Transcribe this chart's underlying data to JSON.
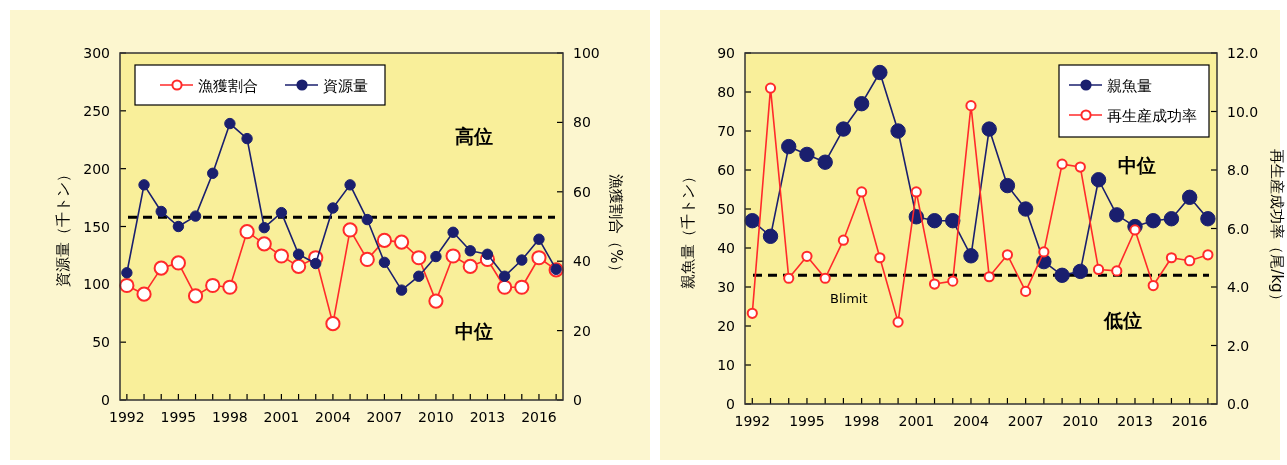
{
  "chart_data": [
    {
      "type": "line",
      "xlabel": null,
      "ylabel": "資源量（千トン）",
      "y2label": "漁獲割合（%）",
      "x": [
        1992,
        1993,
        1994,
        1995,
        1996,
        1997,
        1998,
        1999,
        2000,
        2001,
        2002,
        2003,
        2004,
        2005,
        2006,
        2007,
        2008,
        2009,
        2010,
        2011,
        2012,
        2013,
        2014,
        2015,
        2016,
        2017
      ],
      "series": [
        {
          "name": "漁獲割合",
          "color": "#ff2a2a",
          "axis": "y2",
          "values": [
            33,
            30.5,
            38,
            39.5,
            30,
            33,
            32.5,
            48.5,
            45,
            41.5,
            38.5,
            41,
            22,
            49,
            40.5,
            46,
            45.5,
            41,
            28.5,
            41.5,
            38.5,
            40.5,
            32.5,
            32.5,
            41,
            37.5
          ]
        },
        {
          "name": "資源量",
          "color": "#1a1f6e",
          "values": [
            110,
            186,
            163,
            150,
            159,
            196,
            239,
            226,
            149,
            162,
            126,
            118,
            166,
            186,
            156,
            119,
            95,
            107,
            124,
            145,
            129,
            126,
            107,
            121,
            139,
            113
          ]
        }
      ],
      "xlim": [
        1991.6,
        2017.4
      ],
      "xticks": [
        1992,
        {
          "value": 1993,
          "label": null
        },
        {
          "value": 1994,
          "label": null
        },
        1995,
        {
          "value": 1996,
          "label": null
        },
        {
          "value": 1997,
          "label": null
        },
        1998,
        {
          "value": 1999,
          "label": null
        },
        {
          "value": 2000,
          "label": null
        },
        2001,
        {
          "value": 2002,
          "label": null
        },
        {
          "value": 2003,
          "label": null
        },
        2004,
        {
          "value": 2005,
          "label": null
        },
        {
          "value": 2006,
          "label": null
        },
        2007,
        {
          "value": 2008,
          "label": null
        },
        {
          "value": 2009,
          "label": null
        },
        2010,
        {
          "value": 2011,
          "label": null
        },
        {
          "value": 2012,
          "label": null
        },
        2013,
        {
          "value": 2014,
          "label": null
        },
        {
          "value": 2015,
          "label": null
        },
        2016,
        {
          "value": 2017,
          "label": null
        }
      ],
      "ylim": [
        0,
        300
      ],
      "yticks": [
        0,
        50,
        100,
        150,
        200,
        250,
        300
      ],
      "y2lim": [
        0,
        100
      ],
      "y2ticks": [
        0,
        20,
        40,
        60,
        80,
        100
      ],
      "ref_lines": [
        {
          "axis": "y",
          "value": 158,
          "color": "#000000",
          "line_style": "dashed"
        }
      ],
      "annotations": [
        "高位",
        "中位"
      ],
      "marker": "circle",
      "grid": false,
      "legend": "top left"
    },
    {
      "type": "line",
      "ylabel": "親魚量（千トン）",
      "y2label": "再生産成功率（尾/kg）",
      "x": [
        1992,
        1993,
        1994,
        1995,
        1996,
        1997,
        1998,
        1999,
        2000,
        2001,
        2002,
        2003,
        2004,
        2005,
        2006,
        2007,
        2008,
        2009,
        2010,
        2011,
        2012,
        2013,
        2014,
        2015,
        2016,
        2017
      ],
      "series": [
        {
          "name": "親魚量",
          "color": "#1a1f6e",
          "values": [
            47,
            43,
            66,
            64,
            62,
            70.5,
            77,
            85,
            70,
            48,
            47,
            47,
            38,
            70.5,
            56,
            50,
            36.5,
            33,
            34,
            57.5,
            48.5,
            45.5,
            47,
            47.5,
            53,
            47.5
          ]
        },
        {
          "name": "再生産成功率",
          "color": "#ff2a2a",
          "axis": "y2",
          "values": [
            3.1,
            10.8,
            4.3,
            5.05,
            4.3,
            5.6,
            7.25,
            5.0,
            2.8,
            7.25,
            4.1,
            4.2,
            10.2,
            4.35,
            5.1,
            3.85,
            5.2,
            8.2,
            8.1,
            4.6,
            4.55,
            5.95,
            4.05,
            5.0,
            4.9,
            5.1
          ]
        }
      ],
      "xlim": [
        1991.6,
        2017.5
      ],
      "xticks": [
        1992,
        {
          "value": 1993,
          "label": null
        },
        {
          "value": 1994,
          "label": null
        },
        1995,
        {
          "value": 1996,
          "label": null
        },
        {
          "value": 1997,
          "label": null
        },
        1998,
        {
          "value": 1999,
          "label": null
        },
        {
          "value": 2000,
          "label": null
        },
        2001,
        {
          "value": 2002,
          "label": null
        },
        {
          "value": 2003,
          "label": null
        },
        2004,
        {
          "value": 2005,
          "label": null
        },
        {
          "value": 2006,
          "label": null
        },
        2007,
        {
          "value": 2008,
          "label": null
        },
        {
          "value": 2009,
          "label": null
        },
        2010,
        {
          "value": 2011,
          "label": null
        },
        {
          "value": 2012,
          "label": null
        },
        2013,
        {
          "value": 2014,
          "label": null
        },
        {
          "value": 2015,
          "label": null
        },
        2016,
        {
          "value": 2017,
          "label": null
        }
      ],
      "ylim": [
        0,
        90
      ],
      "yticks": [
        0,
        10,
        20,
        30,
        40,
        50,
        60,
        70,
        80,
        90
      ],
      "y2lim": [
        0,
        12
      ],
      "y2ticks": [
        {
          "value": 0,
          "label": "0.0"
        },
        {
          "value": 2,
          "label": "2.0"
        },
        {
          "value": 4,
          "label": "4.0"
        },
        {
          "value": 6,
          "label": "6.0"
        },
        {
          "value": 8,
          "label": "8.0"
        },
        {
          "value": 10,
          "label": "10.0"
        },
        {
          "value": 12,
          "label": "12.0"
        }
      ],
      "ref_lines": [
        {
          "axis": "y",
          "value": 33,
          "label": "Blimit",
          "color": "#000000",
          "line_style": "dashed"
        }
      ],
      "annotations": [
        "中位",
        "低位"
      ],
      "marker": "circle",
      "grid": false,
      "legend": "top right"
    }
  ]
}
